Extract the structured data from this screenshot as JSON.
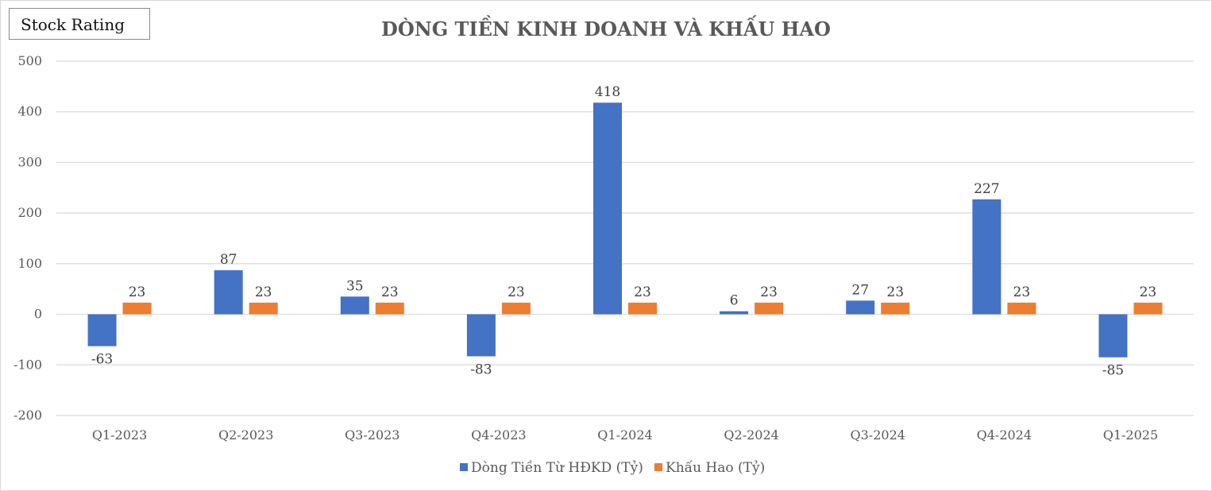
{
  "watermark": "Stock Rating",
  "chart_data": {
    "type": "bar",
    "title": "DÒNG TIỀN KINH DOANH VÀ KHẤU HAO",
    "xlabel": "",
    "ylabel": "",
    "categories": [
      "Q1-2023",
      "Q2-2023",
      "Q3-2023",
      "Q4-2023",
      "Q1-2024",
      "Q2-2024",
      "Q3-2024",
      "Q4-2024",
      "Q1-2025"
    ],
    "series": [
      {
        "name": "Dòng Tiền Từ HĐKD (Tỷ)",
        "color": "#4472C4",
        "values": [
          -63,
          87,
          35,
          -83,
          418,
          6,
          27,
          227,
          -85
        ]
      },
      {
        "name": "Khấu Hao (Tỷ)",
        "color": "#ED7D31",
        "values": [
          23,
          23,
          23,
          23,
          23,
          23,
          23,
          23,
          23
        ]
      }
    ],
    "ylim": [
      -200,
      500
    ],
    "yticks": [
      -200,
      -100,
      0,
      100,
      200,
      300,
      400,
      500
    ],
    "grid": true,
    "legend": "bottom"
  }
}
